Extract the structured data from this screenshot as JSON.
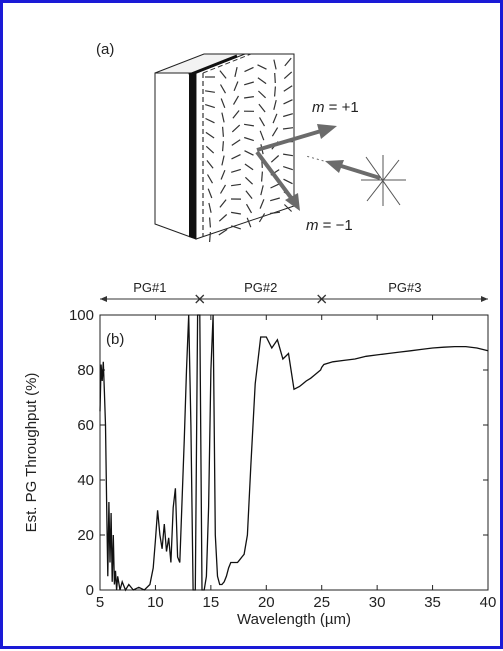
{
  "panel_a": {
    "label": "(a)",
    "order_plus": {
      "symbol": "m",
      "rest": " = +1"
    },
    "order_minus": {
      "symbol": "m",
      "rest": " = −1"
    }
  },
  "panel_b": {
    "label": "(b)"
  },
  "chart_data": {
    "type": "line",
    "xlabel": "Wavelength (µm)",
    "ylabel": "Est. PG Throughput (%)",
    "xlim": [
      5,
      40
    ],
    "ylim": [
      0,
      100
    ],
    "xticks": [
      5,
      10,
      15,
      20,
      25,
      30,
      35,
      40
    ],
    "yticks": [
      0,
      20,
      40,
      60,
      80,
      100
    ],
    "grid": false,
    "ranges": [
      {
        "label": "PG#1",
        "start": 5,
        "end": 14
      },
      {
        "label": "PG#2",
        "start": 14,
        "end": 25
      },
      {
        "label": "PG#3",
        "start": 25,
        "end": 40
      }
    ],
    "series": [
      {
        "x": [
          5,
          5.1,
          5.2,
          5.3,
          5.4,
          5.5,
          5.6,
          5.7,
          5.8,
          5.9,
          6,
          6.1,
          6.2,
          6.3,
          6.4,
          6.5,
          6.6,
          6.8,
          7,
          7.3,
          7.6,
          8,
          8.5,
          9,
          9.5,
          9.8,
          10,
          10.2,
          10.4,
          10.6,
          10.8,
          11,
          11.2,
          11.4,
          11.6,
          11.8,
          12,
          12.2,
          12.4,
          12.6,
          12.8,
          13,
          13.2,
          13.4,
          13.6,
          13.8,
          14,
          14.2,
          14.4,
          14.6,
          14.8,
          15,
          15.2,
          15.4,
          15.6,
          15.8,
          16,
          16.2,
          16.4,
          16.6,
          16.8,
          17,
          17.2,
          17.4,
          17.6,
          17.8,
          18,
          18.3,
          18.6,
          19,
          19.5,
          20,
          20.5,
          21,
          21.5,
          22,
          22.5,
          23,
          23.3,
          23.6,
          24,
          24.3,
          24.6,
          24.9,
          25,
          25.2,
          26,
          27,
          28,
          29,
          30,
          31,
          32,
          33,
          34,
          35,
          36,
          37,
          38,
          39,
          39.5,
          40
        ],
        "y": [
          65,
          82,
          76,
          83,
          72,
          60,
          30,
          5,
          32,
          10,
          28,
          3,
          20,
          2,
          7,
          0,
          5,
          0,
          3,
          0,
          2,
          0,
          1,
          0,
          2,
          8,
          18,
          29,
          20,
          15,
          24,
          14,
          19,
          10,
          30,
          37,
          12,
          10,
          32,
          55,
          80,
          100,
          60,
          0,
          0,
          100,
          100,
          0,
          0,
          5,
          30,
          80,
          100,
          20,
          5,
          2,
          2,
          3,
          5,
          8,
          10,
          10,
          10,
          10,
          11,
          12,
          13,
          20,
          45,
          75,
          92,
          92,
          88,
          91,
          84,
          86,
          73,
          74,
          75,
          76,
          77,
          78,
          79,
          80,
          81,
          82,
          83,
          83.5,
          84,
          85,
          85.5,
          86,
          86.5,
          87,
          87.5,
          88,
          88.3,
          88.5,
          88.5,
          88,
          87.5,
          87
        ]
      }
    ]
  }
}
